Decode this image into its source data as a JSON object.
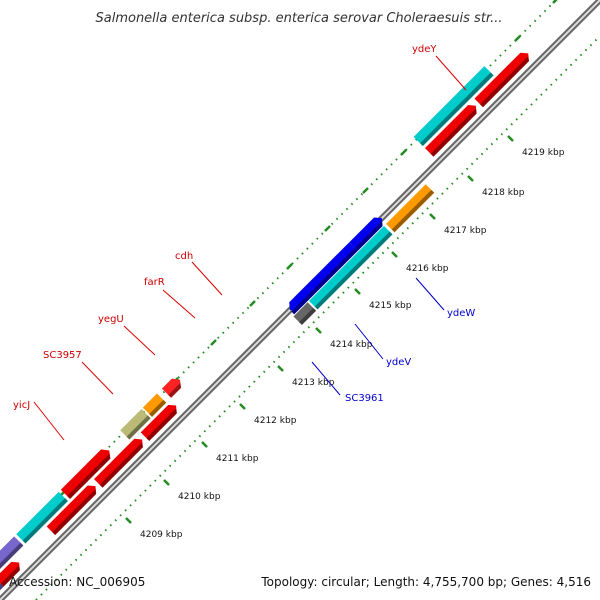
{
  "title": "Salmonella enterica subsp. enterica serovar Choleraesuis str...",
  "footer": {
    "accession": "Accession: NC_006905",
    "summary": "Topology: circular; Length: 4,755,700 bp; Genes: 4,516"
  },
  "colors": {
    "background": "#ffffff",
    "backbone": "#777777",
    "tick": "#228b22",
    "label_red": "#cc0000",
    "label_blue": "#0000cc",
    "label_line_red": "#dd0000",
    "label_line_blue": "#0000cc"
  },
  "scale_ticks": [
    {
      "label": "4209 kbp"
    },
    {
      "label": "4210 kbp"
    },
    {
      "label": "4211 kbp"
    },
    {
      "label": "4212 kbp"
    },
    {
      "label": "4213 kbp"
    },
    {
      "label": "4214 kbp"
    },
    {
      "label": "4215 kbp"
    },
    {
      "label": "4216 kbp"
    },
    {
      "label": "4217 kbp"
    },
    {
      "label": "4218 kbp"
    },
    {
      "label": "4219 kbp"
    }
  ],
  "gene_labels": [
    {
      "name": "yicJ",
      "strand": "reverse"
    },
    {
      "name": "SC3957",
      "strand": "reverse"
    },
    {
      "name": "yegU",
      "strand": "reverse"
    },
    {
      "name": "farR",
      "strand": "reverse"
    },
    {
      "name": "cdh",
      "strand": "reverse"
    },
    {
      "name": "ydeY",
      "strand": "reverse"
    },
    {
      "name": "SC3961",
      "strand": "forward"
    },
    {
      "name": "ydeV",
      "strand": "forward"
    },
    {
      "name": "ydeW",
      "strand": "forward"
    }
  ]
}
